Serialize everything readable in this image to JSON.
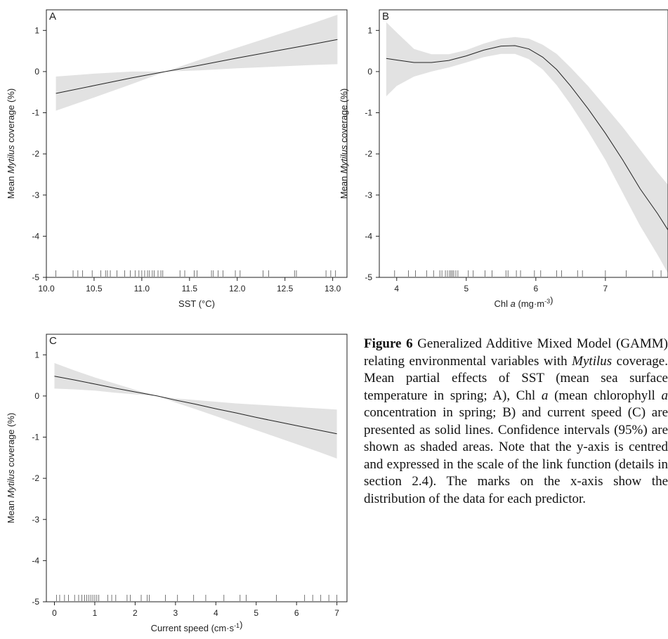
{
  "figure": {
    "caption": {
      "label": "Figure 6",
      "text": " Generalized Additive Mixed Model (GAMM) relating environmental variables with Mytilus coverage. Mean partial effects of SST (mean sea surface temperature in spring; A), Chl a (mean chlorophyll a concentration in spring; B) and current speed (C) are presented as solid lines. Confidence intervals (95%) are shown as shaded areas. Note that the y-axis is centred and expressed in the scale of the link function (details in section 2.4). The marks on the x-axis show the distribution of the data for each predictor."
    }
  },
  "chart_data": [
    {
      "panel": "A",
      "type": "line",
      "ylabel": "Mean Mytilus coverage (%)",
      "xlabel": "SST (°C)",
      "xlim": [
        10.0,
        13.15
      ],
      "ylim": [
        -5,
        1.5
      ],
      "xticks": [
        "10.0",
        "10.5",
        "11.0",
        "11.5",
        "12.0",
        "12.5",
        "13.0"
      ],
      "yticks": [
        "1",
        "0",
        "-1",
        "-2",
        "-3",
        "-4",
        "-5"
      ],
      "x": [
        10.1,
        10.5,
        10.9,
        11.25,
        11.6,
        12.0,
        12.4,
        12.8,
        13.05
      ],
      "fit": [
        -0.53,
        -0.34,
        -0.15,
        0.0,
        0.15,
        0.33,
        0.5,
        0.67,
        0.78
      ],
      "ci_upper": [
        -0.12,
        -0.05,
        0.0,
        0.0,
        0.28,
        0.58,
        0.88,
        1.18,
        1.38
      ],
      "ci_lower": [
        -0.95,
        -0.63,
        -0.3,
        0.0,
        0.03,
        0.08,
        0.12,
        0.16,
        0.18
      ],
      "rug": [
        10.1,
        10.28,
        10.33,
        10.38,
        10.48,
        10.57,
        10.62,
        10.64,
        10.67,
        10.74,
        10.82,
        10.88,
        10.93,
        10.97,
        11.0,
        11.03,
        11.06,
        11.08,
        11.11,
        11.13,
        11.17,
        11.2,
        11.22,
        11.4,
        11.45,
        11.55,
        11.58,
        11.73,
        11.75,
        11.8,
        11.85,
        11.98,
        12.03,
        12.27,
        12.33,
        12.6,
        12.62,
        12.93,
        12.98,
        13.03
      ]
    },
    {
      "panel": "B",
      "type": "line",
      "ylabel": "Mean Mytilus coverage (%)",
      "xlabel": "Chl a (mg·m-3)",
      "xlim": [
        3.75,
        7.9
      ],
      "ylim": [
        -5,
        1.5
      ],
      "xticks": [
        "4",
        "5",
        "6",
        "7"
      ],
      "yticks": [
        "1",
        "0",
        "-1",
        "-2",
        "-3",
        "-4",
        "-5"
      ],
      "x": [
        3.85,
        4.0,
        4.25,
        4.5,
        4.75,
        5.0,
        5.25,
        5.5,
        5.7,
        5.9,
        6.1,
        6.3,
        6.5,
        6.75,
        7.0,
        7.25,
        7.5,
        7.75,
        7.9
      ],
      "fit": [
        0.32,
        0.28,
        0.22,
        0.22,
        0.27,
        0.38,
        0.52,
        0.62,
        0.63,
        0.55,
        0.35,
        0.05,
        -0.35,
        -0.9,
        -1.5,
        -2.15,
        -2.85,
        -3.45,
        -3.85
      ],
      "ci_upper": [
        1.2,
        0.95,
        0.55,
        0.42,
        0.42,
        0.52,
        0.68,
        0.8,
        0.84,
        0.8,
        0.65,
        0.43,
        0.1,
        -0.35,
        -0.85,
        -1.35,
        -1.9,
        -2.45,
        -2.75
      ],
      "ci_lower": [
        -0.6,
        -0.35,
        -0.12,
        0.0,
        0.1,
        0.22,
        0.35,
        0.43,
        0.43,
        0.3,
        0.05,
        -0.33,
        -0.8,
        -1.45,
        -2.15,
        -2.95,
        -3.75,
        -4.45,
        -4.9
      ],
      "rug": [
        3.97,
        4.17,
        4.27,
        4.43,
        4.53,
        4.62,
        4.65,
        4.7,
        4.73,
        4.76,
        4.78,
        4.8,
        4.82,
        4.85,
        4.88,
        5.03,
        5.1,
        5.27,
        5.37,
        5.57,
        5.6,
        5.72,
        5.78,
        5.98,
        6.07,
        6.3,
        6.37,
        6.6,
        6.67,
        7.0,
        7.3,
        7.68,
        7.8
      ]
    },
    {
      "panel": "C",
      "type": "line",
      "ylabel": "Mean Mytilus coverage (%)",
      "xlabel": "Current speed (cm·s-1)",
      "xlim": [
        -0.2,
        7.25
      ],
      "ylim": [
        -5,
        1.5
      ],
      "xticks": [
        "0",
        "1",
        "2",
        "3",
        "4",
        "5",
        "6",
        "7"
      ],
      "yticks": [
        "1",
        "0",
        "-1",
        "-2",
        "-3",
        "-4",
        "-5"
      ],
      "x": [
        0.0,
        0.5,
        1.0,
        1.5,
        2.0,
        2.55,
        3.0,
        3.5,
        4.0,
        4.5,
        5.0,
        5.5,
        6.0,
        6.5,
        7.0
      ],
      "fit": [
        0.48,
        0.39,
        0.29,
        0.19,
        0.1,
        0.0,
        -0.1,
        -0.2,
        -0.31,
        -0.41,
        -0.52,
        -0.62,
        -0.72,
        -0.82,
        -0.92
      ],
      "ci_upper": [
        0.8,
        0.62,
        0.45,
        0.3,
        0.15,
        0.0,
        -0.06,
        -0.1,
        -0.14,
        -0.18,
        -0.21,
        -0.24,
        -0.27,
        -0.3,
        -0.33
      ],
      "ci_lower": [
        0.18,
        0.16,
        0.13,
        0.08,
        0.04,
        0.0,
        -0.16,
        -0.32,
        -0.49,
        -0.66,
        -0.83,
        -1.0,
        -1.17,
        -1.34,
        -1.52
      ],
      "rug": [
        0.05,
        0.13,
        0.25,
        0.35,
        0.5,
        0.6,
        0.68,
        0.75,
        0.8,
        0.85,
        0.9,
        0.95,
        1.0,
        1.05,
        1.1,
        1.32,
        1.42,
        1.52,
        1.8,
        1.88,
        2.15,
        2.3,
        2.35,
        2.75,
        3.05,
        3.45,
        3.75,
        4.2,
        4.6,
        4.75,
        5.5,
        6.2,
        6.4,
        6.6,
        6.8,
        7.0
      ]
    }
  ]
}
